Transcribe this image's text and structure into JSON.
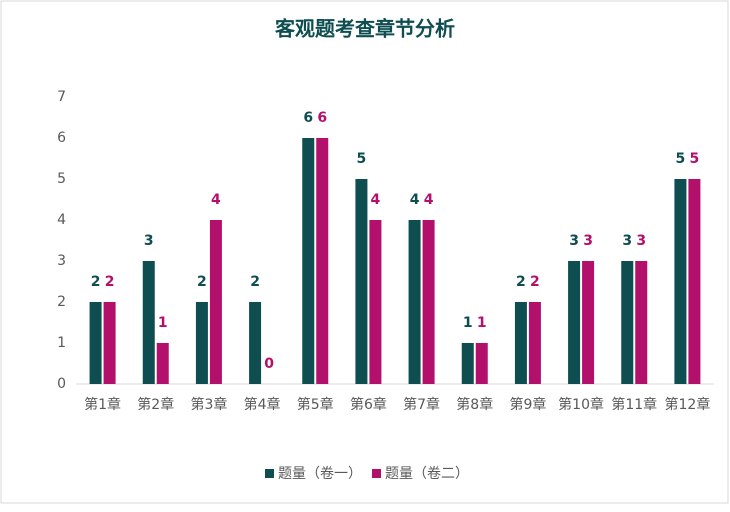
{
  "chart_data": {
    "type": "bar",
    "title": "客观题考查章节分析",
    "categories": [
      "第1章",
      "第2章",
      "第3章",
      "第4章",
      "第5章",
      "第6章",
      "第7章",
      "第8章",
      "第9章",
      "第10章",
      "第11章",
      "第12章"
    ],
    "series": [
      {
        "name": "题量（卷一）",
        "color": "#0e4d50",
        "values": [
          2,
          3,
          2,
          2,
          6,
          5,
          4,
          1,
          2,
          3,
          3,
          5
        ]
      },
      {
        "name": "题量（卷二）",
        "color": "#b3106b",
        "values": [
          2,
          1,
          4,
          0,
          6,
          4,
          4,
          1,
          2,
          3,
          3,
          5
        ]
      }
    ],
    "ylim": [
      0,
      7
    ],
    "yticks": [
      0,
      1,
      2,
      3,
      4,
      5,
      6,
      7
    ],
    "grid": false,
    "legend": "bottom"
  }
}
